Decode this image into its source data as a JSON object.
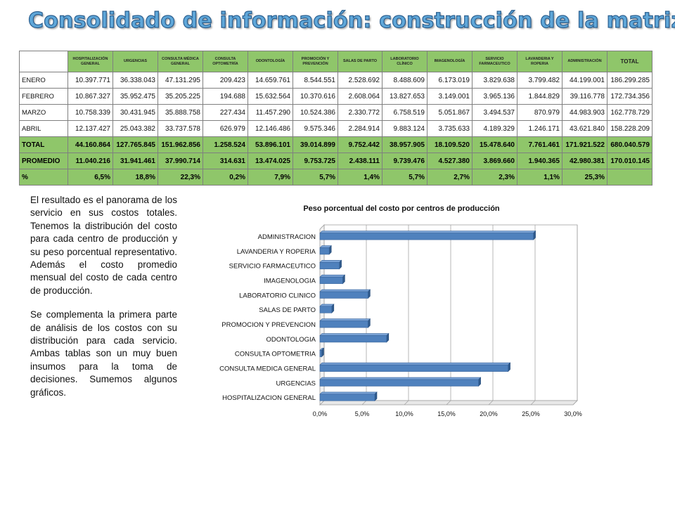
{
  "title": "Consolidado de información: construcción de la matriz",
  "table": {
    "headers": [
      "HOSPITALIZACIÓN GENERAL",
      "URGENCIAS",
      "CONSULTA MÉDICA GENERAL",
      "CONSULTA OPTOMETRÍA",
      "ODONTOLOGÍA",
      "PROMOCIÓN Y PREVENCIÓN",
      "SALAS DE PARTO",
      "LABORATORIO CLÍNICO",
      "IMAGENOLOGÍA",
      "SERVICIO FARMACEUTICO",
      "LAVANDERIA Y ROPERIA",
      "ADMINISTRACIÓN",
      "TOTAL"
    ],
    "rows": [
      {
        "label": "ENERO",
        "values": [
          "10.397.771",
          "36.338.043",
          "47.131.295",
          "209.423",
          "14.659.761",
          "8.544.551",
          "2.528.692",
          "8.488.609",
          "6.173.019",
          "3.829.638",
          "3.799.482",
          "44.199.001",
          "186.299.285"
        ]
      },
      {
        "label": "FEBRERO",
        "values": [
          "10.867.327",
          "35.952.475",
          "35.205.225",
          "194.688",
          "15.632.564",
          "10.370.616",
          "2.608.064",
          "13.827.653",
          "3.149.001",
          "3.965.136",
          "1.844.829",
          "39.116.778",
          "172.734.356"
        ]
      },
      {
        "label": "MARZO",
        "values": [
          "10.758.339",
          "30.431.945",
          "35.888.758",
          "227.434",
          "11.457.290",
          "10.524.386",
          "2.330.772",
          "6.758.519",
          "5.051.867",
          "3.494.537",
          "870.979",
          "44.983.903",
          "162.778.729"
        ]
      },
      {
        "label": "ABRIL",
        "values": [
          "12.137.427",
          "25.043.382",
          "33.737.578",
          "626.979",
          "12.146.486",
          "9.575.346",
          "2.284.914",
          "9.883.124",
          "3.735.633",
          "4.189.329",
          "1.246.171",
          "43.621.840",
          "158.228.209"
        ]
      }
    ],
    "summary": [
      {
        "label": "TOTAL",
        "values": [
          "44.160.864",
          "127.765.845",
          "151.962.856",
          "1.258.524",
          "53.896.101",
          "39.014.899",
          "9.752.442",
          "38.957.905",
          "18.109.520",
          "15.478.640",
          "7.761.461",
          "171.921.522",
          "680.040.579"
        ]
      },
      {
        "label": "PROMEDIO",
        "values": [
          "11.040.216",
          "31.941.461",
          "37.990.714",
          "314.631",
          "13.474.025",
          "9.753.725",
          "2.438.111",
          "9.739.476",
          "4.527.380",
          "3.869.660",
          "1.940.365",
          "42.980.381",
          "170.010.145"
        ]
      },
      {
        "label": "%",
        "values": [
          "6,5%",
          "18,8%",
          "22,3%",
          "0,2%",
          "7,9%",
          "5,7%",
          "1,4%",
          "5,7%",
          "2,7%",
          "2,3%",
          "1,1%",
          "25,3%",
          ""
        ]
      }
    ]
  },
  "paragraphs": [
    "El resultado es el panorama de los servicio en sus costos totales. Tenemos la distribución del costo para cada centro de producción y su peso porcentual representativo. Además el costo promedio mensual del costo de cada centro de producción.",
    "Se complementa la primera parte de análisis de los costos con su distribución para cada servicio. Ambas tablas son un muy buen insumos para la toma de decisiones. Sumemos algunos gráficos."
  ],
  "colors": {
    "title_fill": "#5fa7d9",
    "header_green": "#8fc66a",
    "bar": "#4f81bd"
  },
  "chart_data": {
    "type": "bar",
    "orientation": "horizontal",
    "title": "Peso porcentual del costo por centros de producción",
    "categories": [
      "HOSPITALIZACION GENERAL",
      "URGENCIAS",
      "CONSULTA MEDICA GENERAL",
      "CONSULTA OPTOMETRIA",
      "ODONTOLOGIA",
      "PROMOCION Y PREVENCION",
      "SALAS DE PARTO",
      "LABORATORIO CLINICO",
      "IMAGENOLOGIA",
      "SERVICIO FARMACEUTICO",
      "LAVANDERIA Y ROPERIA",
      "ADMINISTRACION"
    ],
    "values": [
      6.5,
      18.8,
      22.3,
      0.2,
      7.9,
      5.7,
      1.4,
      5.7,
      2.7,
      2.3,
      1.1,
      25.3
    ],
    "xlim": [
      0,
      30
    ],
    "ticks": [
      "0,0%",
      "5,0%",
      "10,0%",
      "15,0%",
      "20,0%",
      "25,0%",
      "30,0%"
    ],
    "grid": true,
    "legend": "none"
  }
}
